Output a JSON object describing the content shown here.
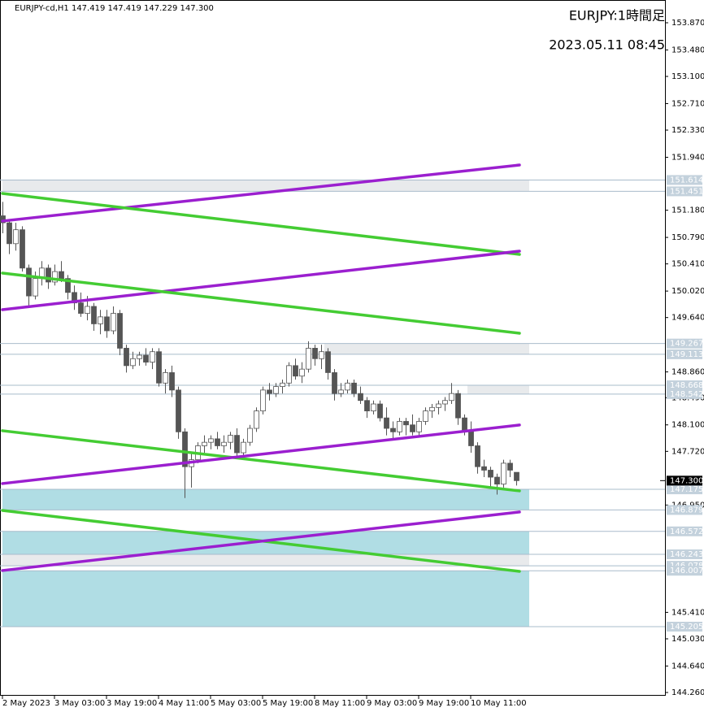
{
  "chart_data": {
    "type": "candlestick",
    "header": "EURJPY-cd,H1  147.419 147.419 147.229 147.300",
    "title": "EURJPY:1時間足",
    "subtitle": "2023.05.11 08:45",
    "xlim": [
      -1,
      203
    ],
    "ylim": [
      144.26,
      153.87
    ],
    "yticks": [
      {
        "value": 153.87,
        "label": "153.870"
      },
      {
        "value": 153.48,
        "label": "153.480"
      },
      {
        "value": 153.1,
        "label": "153.100"
      },
      {
        "value": 152.71,
        "label": "152.710"
      },
      {
        "value": 152.33,
        "label": "152.330"
      },
      {
        "value": 151.94,
        "label": "151.940"
      },
      {
        "value": 151.18,
        "label": "151.180"
      },
      {
        "value": 150.79,
        "label": "150.790"
      },
      {
        "value": 150.41,
        "label": "150.410"
      },
      {
        "value": 150.02,
        "label": "150.020"
      },
      {
        "value": 149.64,
        "label": "149.640"
      },
      {
        "value": 148.86,
        "label": "148.860"
      },
      {
        "value": 148.49,
        "label": "148.490"
      },
      {
        "value": 148.1,
        "label": "148.100"
      },
      {
        "value": 147.72,
        "label": "147.720"
      },
      {
        "value": 146.95,
        "label": "146.950"
      },
      {
        "value": 145.41,
        "label": "145.410"
      },
      {
        "value": 145.03,
        "label": "145.030"
      },
      {
        "value": 144.64,
        "label": "144.640"
      },
      {
        "value": 144.26,
        "label": "144.260"
      }
    ],
    "xticks": [
      {
        "value": 0,
        "label": "2 May 2023"
      },
      {
        "value": 16,
        "label": "3 May 03:00"
      },
      {
        "value": 32,
        "label": "3 May 19:00"
      },
      {
        "value": 48,
        "label": "4 May 11:00"
      },
      {
        "value": 64,
        "label": "5 May 03:00"
      },
      {
        "value": 80,
        "label": "5 May 19:00"
      },
      {
        "value": 96,
        "label": "8 May 11:00"
      },
      {
        "value": 112,
        "label": "9 May 03:00"
      },
      {
        "value": 128,
        "label": "9 May 19:00"
      },
      {
        "value": 144,
        "label": "10 May 11:00"
      }
    ],
    "up_color": "#ffffff",
    "down_color": "#555555",
    "x": [
      0,
      2,
      4,
      6,
      8,
      10,
      12,
      14,
      16,
      18,
      20,
      22,
      24,
      26,
      28,
      30,
      32,
      34,
      36,
      38,
      40,
      42,
      44,
      46,
      48,
      50,
      52,
      54,
      56,
      58,
      60,
      62,
      64,
      66,
      68,
      70,
      72,
      74,
      76,
      78,
      80,
      82,
      84,
      86,
      88,
      90,
      92,
      94,
      96,
      98,
      100,
      102,
      104,
      106,
      108,
      110,
      112,
      114,
      116,
      118,
      120,
      122,
      124,
      126,
      128,
      130,
      132,
      134,
      136,
      138,
      140,
      142,
      144,
      146,
      148,
      150,
      152,
      154,
      156,
      158
    ],
    "ohlc": [
      [
        151.1,
        151.3,
        150.85,
        151.0
      ],
      [
        151.0,
        151.05,
        150.55,
        150.7
      ],
      [
        150.7,
        151.0,
        150.6,
        150.9
      ],
      [
        150.9,
        150.95,
        150.3,
        150.35
      ],
      [
        150.35,
        150.4,
        149.8,
        149.95
      ],
      [
        149.95,
        150.3,
        149.9,
        150.2
      ],
      [
        150.2,
        150.45,
        150.1,
        150.35
      ],
      [
        150.35,
        150.4,
        150.05,
        150.15
      ],
      [
        150.15,
        150.4,
        150.1,
        150.3
      ],
      [
        150.3,
        150.45,
        150.15,
        150.2
      ],
      [
        150.2,
        150.25,
        149.9,
        150.0
      ],
      [
        150.0,
        150.1,
        149.75,
        149.85
      ],
      [
        149.85,
        150.0,
        149.65,
        149.7
      ],
      [
        149.7,
        149.95,
        149.6,
        149.8
      ],
      [
        149.8,
        149.85,
        149.45,
        149.55
      ],
      [
        149.55,
        149.75,
        149.4,
        149.65
      ],
      [
        149.65,
        149.75,
        149.35,
        149.45
      ],
      [
        149.45,
        149.8,
        149.4,
        149.7
      ],
      [
        149.7,
        149.75,
        149.1,
        149.2
      ],
      [
        149.2,
        149.25,
        148.85,
        148.95
      ],
      [
        148.95,
        149.15,
        148.9,
        149.05
      ],
      [
        149.05,
        149.15,
        148.95,
        149.1
      ],
      [
        149.1,
        149.2,
        148.95,
        149.0
      ],
      [
        149.0,
        149.2,
        148.9,
        149.15
      ],
      [
        149.15,
        149.2,
        148.65,
        148.7
      ],
      [
        148.7,
        148.9,
        148.55,
        148.85
      ],
      [
        148.85,
        148.95,
        148.5,
        148.6
      ],
      [
        148.6,
        148.65,
        147.9,
        148.0
      ],
      [
        148.0,
        148.05,
        147.05,
        147.5
      ],
      [
        147.5,
        147.7,
        147.2,
        147.6
      ],
      [
        147.6,
        147.85,
        147.55,
        147.8
      ],
      [
        147.8,
        147.95,
        147.7,
        147.85
      ],
      [
        147.85,
        147.95,
        147.75,
        147.9
      ],
      [
        147.9,
        148.0,
        147.75,
        147.8
      ],
      [
        147.8,
        147.95,
        147.7,
        147.85
      ],
      [
        147.85,
        148.0,
        147.75,
        147.95
      ],
      [
        147.95,
        148.05,
        147.65,
        147.7
      ],
      [
        147.7,
        147.9,
        147.6,
        147.85
      ],
      [
        147.85,
        148.1,
        147.8,
        148.05
      ],
      [
        148.05,
        148.35,
        148.0,
        148.3
      ],
      [
        148.3,
        148.65,
        148.25,
        148.6
      ],
      [
        148.6,
        148.7,
        148.45,
        148.55
      ],
      [
        148.55,
        148.7,
        148.5,
        148.65
      ],
      [
        148.65,
        148.75,
        148.55,
        148.7
      ],
      [
        148.7,
        149.0,
        148.65,
        148.95
      ],
      [
        148.95,
        149.05,
        148.75,
        148.8
      ],
      [
        148.8,
        149.0,
        148.7,
        148.9
      ],
      [
        148.9,
        149.3,
        148.85,
        149.2
      ],
      [
        149.2,
        149.25,
        148.95,
        149.05
      ],
      [
        149.05,
        149.25,
        148.9,
        149.15
      ],
      [
        149.15,
        149.2,
        148.75,
        148.85
      ],
      [
        148.85,
        148.9,
        148.45,
        148.55
      ],
      [
        148.55,
        148.7,
        148.5,
        148.6
      ],
      [
        148.6,
        148.75,
        148.55,
        148.7
      ],
      [
        148.7,
        148.75,
        148.5,
        148.55
      ],
      [
        148.55,
        148.65,
        148.4,
        148.45
      ],
      [
        148.45,
        148.5,
        148.2,
        148.3
      ],
      [
        148.3,
        148.45,
        148.25,
        148.4
      ],
      [
        148.4,
        148.45,
        148.15,
        148.2
      ],
      [
        148.2,
        148.35,
        147.95,
        148.05
      ],
      [
        148.05,
        148.15,
        147.9,
        148.0
      ],
      [
        148.0,
        148.2,
        147.95,
        148.15
      ],
      [
        148.15,
        148.2,
        147.95,
        148.1
      ],
      [
        148.1,
        148.25,
        147.95,
        148.0
      ],
      [
        148.0,
        148.2,
        147.95,
        148.15
      ],
      [
        148.15,
        148.35,
        148.1,
        148.3
      ],
      [
        148.3,
        148.4,
        148.2,
        148.35
      ],
      [
        148.35,
        148.45,
        148.25,
        148.4
      ],
      [
        148.4,
        148.5,
        148.3,
        148.45
      ],
      [
        148.45,
        148.7,
        148.4,
        148.55
      ],
      [
        148.55,
        148.6,
        148.1,
        148.2
      ],
      [
        148.2,
        148.25,
        147.95,
        148.0
      ],
      [
        148.0,
        148.15,
        147.7,
        147.8
      ],
      [
        147.8,
        147.85,
        147.4,
        147.5
      ],
      [
        147.5,
        147.6,
        147.35,
        147.45
      ],
      [
        147.45,
        147.5,
        147.2,
        147.35
      ],
      [
        147.35,
        147.4,
        147.1,
        147.25
      ],
      [
        147.25,
        147.6,
        147.2,
        147.55
      ],
      [
        147.55,
        147.6,
        147.35,
        147.45
      ],
      [
        147.419,
        147.419,
        147.229,
        147.3
      ]
    ],
    "zones": [
      {
        "low": 151.451,
        "high": 151.614,
        "from": 0,
        "to": 162,
        "color": "#e8eaec"
      },
      {
        "low": 149.113,
        "high": 149.267,
        "from": 99,
        "to": 162,
        "color": "#e8eaec"
      },
      {
        "low": 148.542,
        "high": 148.668,
        "from": 143,
        "to": 162,
        "color": "#e8eaec"
      },
      {
        "low": 146.879,
        "high": 147.175,
        "from": 0,
        "to": 162,
        "color": "#b0dde4"
      },
      {
        "low": 146.243,
        "high": 146.572,
        "from": 0,
        "to": 162,
        "color": "#b0dde4"
      },
      {
        "low": 146.078,
        "high": 146.243,
        "from": 0,
        "to": 162,
        "color": "#e8eaec"
      },
      {
        "low": 145.205,
        "high": 146.007,
        "from": 0,
        "to": 162,
        "color": "#b0dde4"
      }
    ],
    "levels": [
      151.614,
      151.451,
      149.267,
      149.113,
      148.668,
      148.542,
      147.175,
      146.879,
      146.572,
      146.243,
      146.078,
      146.007,
      145.205
    ],
    "last_price": {
      "value": 147.3,
      "label": "147.300"
    },
    "trendlines": [
      {
        "color": "#9b1fcf",
        "x": [
          0,
          159
        ],
        "y": [
          151.025,
          151.829
        ]
      },
      {
        "color": "#44cc33",
        "x": [
          0,
          159
        ],
        "y": [
          151.421,
          150.546
        ]
      },
      {
        "color": "#9b1fcf",
        "x": [
          0,
          159
        ],
        "y": [
          149.753,
          150.593
        ]
      },
      {
        "color": "#44cc33",
        "x": [
          0,
          159
        ],
        "y": [
          150.278,
          149.415
        ]
      },
      {
        "color": "#44cc33",
        "x": [
          0,
          159
        ],
        "y": [
          148.016,
          147.153
        ]
      },
      {
        "color": "#9b1fcf",
        "x": [
          0,
          159
        ],
        "y": [
          147.258,
          148.098
        ]
      },
      {
        "color": "#44cc33",
        "x": [
          0,
          159
        ],
        "y": [
          146.873,
          145.998
        ]
      },
      {
        "color": "#9b1fcf",
        "x": [
          0,
          159
        ],
        "y": [
          146.01,
          146.85
        ]
      }
    ]
  }
}
